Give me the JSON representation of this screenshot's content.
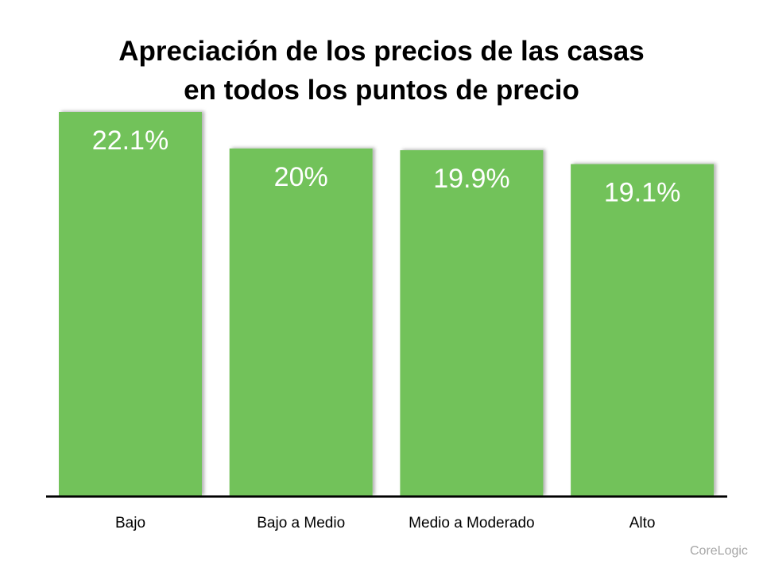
{
  "chart_data": {
    "type": "bar",
    "title_lines": [
      "Apreciación de los precios de las casas",
      "en todos los puntos de precio"
    ],
    "categories": [
      "Bajo",
      "Bajo a Medio",
      "Medio a Moderado",
      "Alto"
    ],
    "values": [
      22.1,
      20,
      19.9,
      19.1
    ],
    "data_labels": [
      "22.1%",
      "20%",
      "19.9%",
      "19.1%"
    ],
    "xlabel": "",
    "ylabel": "",
    "ylim": [
      0,
      22.1
    ],
    "grid": false,
    "legend": "none",
    "bar_color": "#72C25A",
    "label_color": "#FFFFFF"
  },
  "source": "CoreLogic"
}
